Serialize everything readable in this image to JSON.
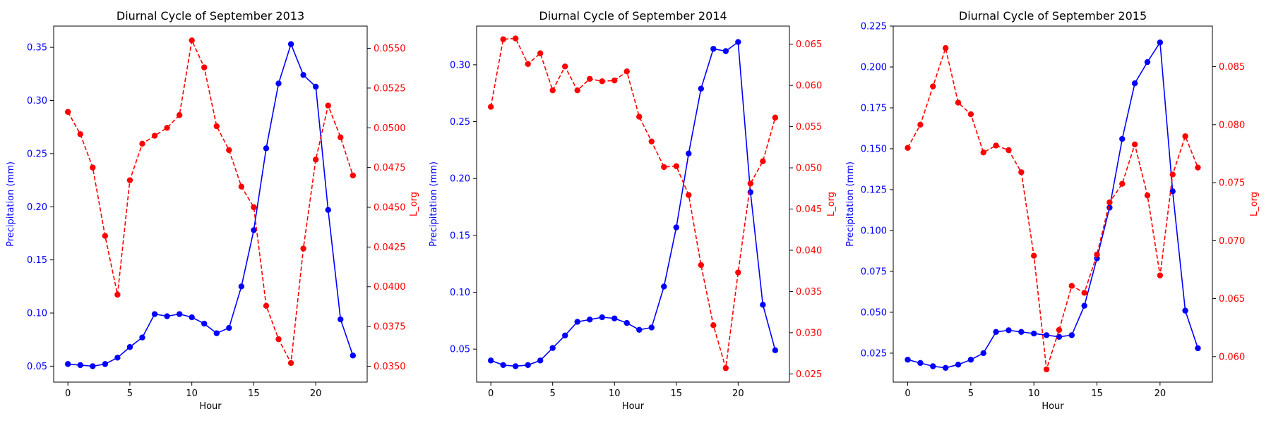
{
  "colors": {
    "precip": "#0000ff",
    "lorg": "#ff0000",
    "axis": "#000000"
  },
  "chart_data": [
    {
      "type": "line",
      "title": "Diurnal Cycle of September 2013",
      "xlabel": "Hour",
      "ylabel_left": "Precipitation (mm)",
      "ylabel_right": "L_org",
      "xlim": [
        -1.15,
        24.15
      ],
      "xticks": [
        0,
        5,
        10,
        15,
        20
      ],
      "ylim_left": [
        0.035,
        0.37
      ],
      "yticks_left": [
        0.05,
        0.1,
        0.15,
        0.2,
        0.25,
        0.3,
        0.35
      ],
      "ylim_right": [
        0.034,
        0.0564
      ],
      "yticks_right": [
        0.035,
        0.0375,
        0.04,
        0.0425,
        0.045,
        0.0475,
        0.05,
        0.0525,
        0.055
      ],
      "ytick_decimals_left": 2,
      "ytick_decimals_right": 4,
      "grid": false,
      "x": [
        0,
        1,
        2,
        3,
        4,
        5,
        6,
        7,
        8,
        9,
        10,
        11,
        12,
        13,
        14,
        15,
        16,
        17,
        18,
        19,
        20,
        21,
        22,
        23
      ],
      "series": [
        {
          "axis": "left",
          "style": "solid",
          "values": [
            0.052,
            0.051,
            0.05,
            0.052,
            0.058,
            0.068,
            0.077,
            0.099,
            0.097,
            0.099,
            0.096,
            0.09,
            0.081,
            0.086,
            0.125,
            0.178,
            0.255,
            0.316,
            0.353,
            0.324,
            0.313,
            0.197,
            0.094,
            0.06
          ]
        },
        {
          "axis": "right",
          "style": "dashed",
          "values": [
            0.051,
            0.0496,
            0.0475,
            0.0432,
            0.0395,
            0.0467,
            0.049,
            0.0495,
            0.05,
            0.0508,
            0.0555,
            0.0538,
            0.0501,
            0.0486,
            0.0463,
            0.045,
            0.0388,
            0.0367,
            0.0352,
            0.0424,
            0.048,
            0.0514,
            0.0494,
            0.047
          ]
        }
      ]
    },
    {
      "type": "line",
      "title": "Diurnal Cycle of September 2014",
      "xlabel": "Hour",
      "ylabel_left": "Precipitation (mm)",
      "ylabel_right": "L_org",
      "xlim": [
        -1.15,
        24.15
      ],
      "xticks": [
        0,
        5,
        10,
        15,
        20
      ],
      "ylim_left": [
        0.021,
        0.334
      ],
      "yticks_left": [
        0.05,
        0.1,
        0.15,
        0.2,
        0.25,
        0.3
      ],
      "ylim_right": [
        0.024,
        0.0672
      ],
      "yticks_right": [
        0.025,
        0.03,
        0.035,
        0.04,
        0.045,
        0.05,
        0.055,
        0.06,
        0.065
      ],
      "ytick_decimals_left": 2,
      "ytick_decimals_right": 3,
      "grid": false,
      "x": [
        0,
        1,
        2,
        3,
        4,
        5,
        6,
        7,
        8,
        9,
        10,
        11,
        12,
        13,
        14,
        15,
        16,
        17,
        18,
        19,
        20,
        21,
        22,
        23
      ],
      "series": [
        {
          "axis": "left",
          "style": "solid",
          "values": [
            0.04,
            0.036,
            0.035,
            0.036,
            0.04,
            0.051,
            0.062,
            0.074,
            0.076,
            0.078,
            0.077,
            0.073,
            0.067,
            0.069,
            0.105,
            0.157,
            0.222,
            0.279,
            0.314,
            0.312,
            0.32,
            0.188,
            0.089,
            0.049
          ]
        },
        {
          "axis": "right",
          "style": "dashed",
          "values": [
            0.0574,
            0.0656,
            0.0657,
            0.0626,
            0.0639,
            0.0594,
            0.0623,
            0.0594,
            0.0608,
            0.0605,
            0.0606,
            0.0617,
            0.0562,
            0.0532,
            0.0501,
            0.0502,
            0.0467,
            0.0382,
            0.0309,
            0.0257,
            0.0373,
            0.0481,
            0.0508,
            0.0561
          ]
        }
      ]
    },
    {
      "type": "line",
      "title": "Diurnal Cycle of September 2015",
      "xlabel": "Hour",
      "ylabel_left": "Precipitation (mm)",
      "ylabel_right": "L_org",
      "xlim": [
        -1.15,
        24.15
      ],
      "xticks": [
        0,
        5,
        10,
        15,
        20
      ],
      "ylim_left": [
        0.0073,
        0.225
      ],
      "yticks_left": [
        0.025,
        0.05,
        0.075,
        0.1,
        0.125,
        0.15,
        0.175,
        0.2,
        0.225
      ],
      "ylim_right": [
        0.0578,
        0.0885
      ],
      "yticks_right": [
        0.06,
        0.065,
        0.07,
        0.075,
        0.08,
        0.085
      ],
      "ytick_decimals_left": 3,
      "ytick_decimals_right": 3,
      "grid": false,
      "x": [
        0,
        1,
        2,
        3,
        4,
        5,
        6,
        7,
        8,
        9,
        10,
        11,
        12,
        13,
        14,
        15,
        16,
        17,
        18,
        19,
        20,
        21,
        22,
        23
      ],
      "series": [
        {
          "axis": "left",
          "style": "solid",
          "values": [
            0.021,
            0.019,
            0.017,
            0.016,
            0.018,
            0.021,
            0.025,
            0.038,
            0.039,
            0.038,
            0.037,
            0.036,
            0.035,
            0.036,
            0.054,
            0.083,
            0.114,
            0.156,
            0.19,
            0.203,
            0.215,
            0.124,
            0.051,
            0.028
          ]
        },
        {
          "axis": "right",
          "style": "dashed",
          "values": [
            0.078,
            0.08,
            0.0833,
            0.0866,
            0.0819,
            0.0809,
            0.0776,
            0.0782,
            0.0778,
            0.0759,
            0.0687,
            0.0589,
            0.0623,
            0.0661,
            0.0655,
            0.0688,
            0.0733,
            0.0749,
            0.0783,
            0.0739,
            0.067,
            0.0757,
            0.079,
            0.0763
          ]
        }
      ]
    }
  ]
}
